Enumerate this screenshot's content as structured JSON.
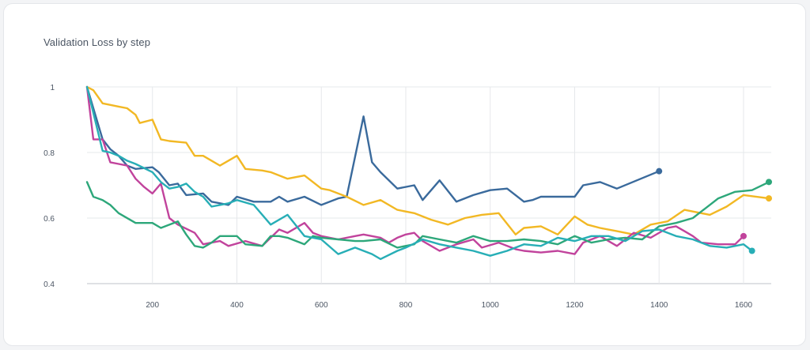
{
  "chart_data": {
    "type": "line",
    "title": "Validation Loss by step",
    "xlabel": "",
    "ylabel": "",
    "xlim": [
      45,
      1660
    ],
    "ylim": [
      0.4,
      1.0
    ],
    "x_ticks": [
      200,
      400,
      600,
      800,
      1000,
      1200,
      1400,
      1600
    ],
    "y_ticks": [
      0.4,
      0.6,
      0.8,
      1.0
    ],
    "y_tick_labels": [
      "0.4",
      "0.6",
      "0.8",
      "1"
    ],
    "x_tick_labels": [
      "200",
      "400",
      "600",
      "800",
      "1000",
      "1200",
      "1400",
      "1600"
    ],
    "grid": "vertical and horizontal",
    "legend": "none",
    "series": [
      {
        "color": "#3a6a9c",
        "x": [
          45,
          82,
          100,
          120,
          140,
          160,
          200,
          215,
          240,
          260,
          280,
          320,
          340,
          360,
          380,
          400,
          440,
          480,
          500,
          520,
          560,
          600,
          640,
          660,
          700,
          720,
          740,
          780,
          820,
          840,
          880,
          920,
          960,
          1000,
          1040,
          1080,
          1100,
          1120,
          1160,
          1200,
          1220,
          1260,
          1300,
          1400
        ],
        "y": [
          1.0,
          0.84,
          0.81,
          0.79,
          0.76,
          0.75,
          0.755,
          0.74,
          0.7,
          0.705,
          0.67,
          0.675,
          0.65,
          0.645,
          0.64,
          0.665,
          0.65,
          0.65,
          0.665,
          0.65,
          0.665,
          0.64,
          0.66,
          0.665,
          0.91,
          0.77,
          0.74,
          0.69,
          0.7,
          0.655,
          0.715,
          0.65,
          0.67,
          0.685,
          0.69,
          0.65,
          0.655,
          0.665,
          0.665,
          0.665,
          0.7,
          0.71,
          0.69,
          0.743
        ]
      },
      {
        "color": "#f2b824",
        "x": [
          45,
          60,
          82,
          120,
          140,
          160,
          170,
          200,
          220,
          240,
          280,
          300,
          320,
          340,
          360,
          400,
          420,
          460,
          480,
          520,
          560,
          600,
          620,
          660,
          700,
          740,
          780,
          820,
          860,
          900,
          940,
          980,
          1020,
          1060,
          1080,
          1120,
          1160,
          1200,
          1230,
          1260,
          1300,
          1340,
          1380,
          1420,
          1460,
          1480,
          1520,
          1560,
          1600,
          1660
        ],
        "y": [
          1.0,
          0.99,
          0.95,
          0.94,
          0.935,
          0.915,
          0.89,
          0.9,
          0.84,
          0.835,
          0.83,
          0.79,
          0.79,
          0.775,
          0.76,
          0.79,
          0.75,
          0.745,
          0.74,
          0.72,
          0.73,
          0.69,
          0.685,
          0.665,
          0.64,
          0.655,
          0.625,
          0.615,
          0.595,
          0.58,
          0.6,
          0.61,
          0.615,
          0.55,
          0.57,
          0.575,
          0.55,
          0.605,
          0.58,
          0.57,
          0.56,
          0.55,
          0.58,
          0.59,
          0.625,
          0.62,
          0.61,
          0.635,
          0.67,
          0.66
        ]
      },
      {
        "color": "#c1439c",
        "x": [
          45,
          60,
          82,
          100,
          120,
          140,
          160,
          180,
          200,
          220,
          240,
          260,
          300,
          320,
          340,
          360,
          380,
          420,
          460,
          500,
          520,
          560,
          580,
          600,
          640,
          680,
          700,
          740,
          760,
          780,
          800,
          820,
          840,
          880,
          920,
          960,
          980,
          1020,
          1060,
          1080,
          1120,
          1160,
          1200,
          1220,
          1260,
          1300,
          1340,
          1380,
          1420,
          1440,
          1460,
          1480,
          1500,
          1540,
          1580,
          1600
        ],
        "y": [
          1.0,
          0.84,
          0.84,
          0.77,
          0.765,
          0.76,
          0.72,
          0.695,
          0.675,
          0.705,
          0.6,
          0.58,
          0.555,
          0.52,
          0.525,
          0.53,
          0.515,
          0.53,
          0.515,
          0.565,
          0.555,
          0.585,
          0.555,
          0.545,
          0.535,
          0.545,
          0.55,
          0.54,
          0.525,
          0.54,
          0.55,
          0.555,
          0.53,
          0.5,
          0.52,
          0.535,
          0.51,
          0.525,
          0.505,
          0.5,
          0.495,
          0.5,
          0.49,
          0.525,
          0.545,
          0.515,
          0.555,
          0.54,
          0.57,
          0.575,
          0.56,
          0.545,
          0.525,
          0.52,
          0.52,
          0.545
        ]
      },
      {
        "color": "#2da77a",
        "x": [
          45,
          60,
          82,
          100,
          120,
          160,
          200,
          220,
          260,
          280,
          300,
          320,
          340,
          360,
          380,
          400,
          420,
          460,
          480,
          500,
          520,
          560,
          580,
          600,
          640,
          680,
          700,
          740,
          780,
          820,
          840,
          880,
          920,
          960,
          1000,
          1040,
          1080,
          1120,
          1160,
          1200,
          1240,
          1280,
          1320,
          1360,
          1400,
          1440,
          1480,
          1500,
          1540,
          1580,
          1620,
          1660
        ],
        "y": [
          0.71,
          0.665,
          0.655,
          0.64,
          0.615,
          0.585,
          0.585,
          0.57,
          0.59,
          0.55,
          0.515,
          0.51,
          0.525,
          0.545,
          0.545,
          0.545,
          0.52,
          0.515,
          0.545,
          0.545,
          0.54,
          0.52,
          0.545,
          0.54,
          0.535,
          0.53,
          0.53,
          0.535,
          0.51,
          0.52,
          0.545,
          0.535,
          0.525,
          0.545,
          0.53,
          0.53,
          0.535,
          0.53,
          0.52,
          0.545,
          0.525,
          0.535,
          0.54,
          0.535,
          0.575,
          0.585,
          0.6,
          0.62,
          0.66,
          0.68,
          0.685,
          0.71
        ]
      },
      {
        "color": "#27aeb6",
        "x": [
          45,
          82,
          100,
          120,
          140,
          160,
          200,
          220,
          240,
          260,
          280,
          300,
          320,
          340,
          360,
          380,
          400,
          440,
          480,
          520,
          560,
          600,
          640,
          680,
          700,
          720,
          740,
          780,
          800,
          840,
          880,
          920,
          960,
          1000,
          1040,
          1080,
          1120,
          1160,
          1200,
          1240,
          1280,
          1320,
          1360,
          1400,
          1440,
          1480,
          1520,
          1560,
          1600,
          1620
        ],
        "y": [
          1.0,
          0.805,
          0.8,
          0.79,
          0.775,
          0.765,
          0.74,
          0.71,
          0.69,
          0.695,
          0.705,
          0.68,
          0.665,
          0.635,
          0.64,
          0.645,
          0.655,
          0.64,
          0.58,
          0.61,
          0.545,
          0.535,
          0.49,
          0.51,
          0.5,
          0.49,
          0.475,
          0.5,
          0.51,
          0.535,
          0.52,
          0.51,
          0.5,
          0.485,
          0.5,
          0.52,
          0.515,
          0.54,
          0.53,
          0.545,
          0.545,
          0.53,
          0.56,
          0.565,
          0.545,
          0.535,
          0.515,
          0.51,
          0.52,
          0.5
        ]
      }
    ]
  }
}
